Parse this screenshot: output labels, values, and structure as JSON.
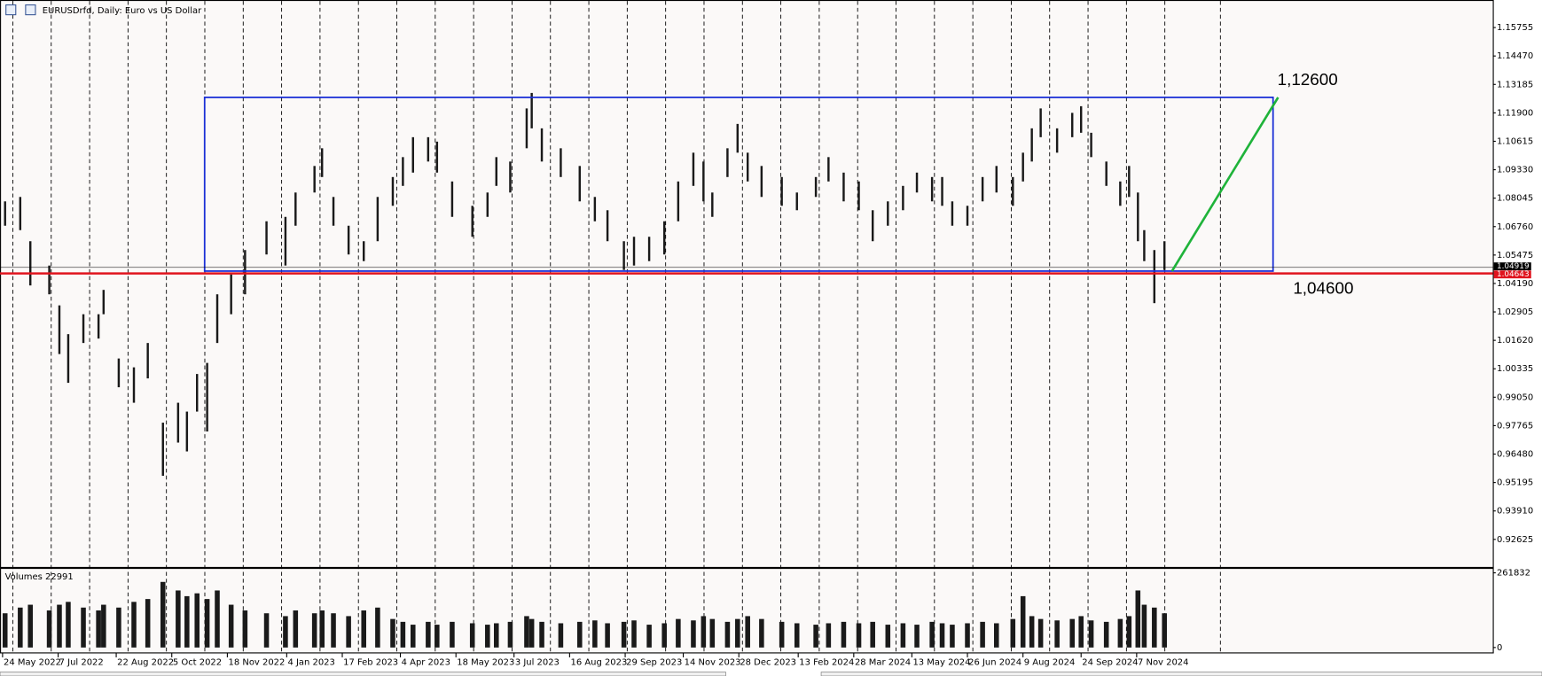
{
  "chart_data": {
    "type": "range-bars",
    "title": "EURUSDrfd, Daily:  Euro vs US Dollar",
    "color": "#1a1a1a",
    "x": [
      "2022-05-26",
      "2022-06-07",
      "2022-06-15",
      "2022-06-30",
      "2022-07-08",
      "2022-07-15",
      "2022-07-27",
      "2022-08-08",
      "2022-08-12",
      "2022-08-24",
      "2022-09-05",
      "2022-09-16",
      "2022-09-28",
      "2022-10-10",
      "2022-10-17",
      "2022-10-25",
      "2022-11-02",
      "2022-11-10",
      "2022-11-21",
      "2022-12-02",
      "2022-12-19",
      "2023-01-03",
      "2023-01-11",
      "2023-01-26",
      "2023-02-01",
      "2023-02-10",
      "2023-02-22",
      "2023-03-06",
      "2023-03-17",
      "2023-03-29",
      "2023-04-06",
      "2023-04-14",
      "2023-04-26",
      "2023-05-03",
      "2023-05-15",
      "2023-05-31",
      "2023-06-12",
      "2023-06-19",
      "2023-06-30",
      "2023-07-13",
      "2023-07-17",
      "2023-07-25",
      "2023-08-09",
      "2023-08-24",
      "2023-09-05",
      "2023-09-15",
      "2023-09-28",
      "2023-10-06",
      "2023-10-18",
      "2023-10-30",
      "2023-11-10",
      "2023-11-22",
      "2023-11-30",
      "2023-12-07",
      "2023-12-19",
      "2023-12-27",
      "2024-01-04",
      "2024-01-15",
      "2024-01-31",
      "2024-02-12",
      "2024-02-27",
      "2024-03-08",
      "2024-03-20",
      "2024-04-01",
      "2024-04-12",
      "2024-04-24",
      "2024-05-06",
      "2024-05-17",
      "2024-05-29",
      "2024-06-06",
      "2024-06-14",
      "2024-06-26",
      "2024-07-08",
      "2024-07-19",
      "2024-08-01",
      "2024-08-09",
      "2024-08-16",
      "2024-08-23",
      "2024-09-05",
      "2024-09-17",
      "2024-09-24",
      "2024-10-02",
      "2024-10-14",
      "2024-10-25",
      "2024-11-01",
      "2024-11-08",
      "2024-11-13",
      "2024-11-21",
      "2024-11-29"
    ],
    "high": [
      1.079,
      1.081,
      1.061,
      1.05,
      1.032,
      1.019,
      1.028,
      1.028,
      1.039,
      1.008,
      1.004,
      1.015,
      0.979,
      0.988,
      0.984,
      1.001,
      1.006,
      1.037,
      1.046,
      1.057,
      1.07,
      1.072,
      1.083,
      1.095,
      1.103,
      1.081,
      1.068,
      1.061,
      1.081,
      1.09,
      1.099,
      1.108,
      1.108,
      1.106,
      1.088,
      1.077,
      1.083,
      1.099,
      1.097,
      1.121,
      1.128,
      1.112,
      1.103,
      1.095,
      1.081,
      1.075,
      1.061,
      1.063,
      1.063,
      1.07,
      1.088,
      1.101,
      1.097,
      1.083,
      1.103,
      1.114,
      1.101,
      1.095,
      1.09,
      1.083,
      1.09,
      1.099,
      1.092,
      1.088,
      1.075,
      1.079,
      1.086,
      1.092,
      1.09,
      1.09,
      1.079,
      1.077,
      1.09,
      1.095,
      1.09,
      1.101,
      1.112,
      1.121,
      1.112,
      1.119,
      1.122,
      1.11,
      1.097,
      1.088,
      1.095,
      1.083,
      1.066,
      1.057,
      1.061
    ],
    "low": [
      1.068,
      1.066,
      1.041,
      1.037,
      1.01,
      0.997,
      1.015,
      1.017,
      1.028,
      0.995,
      0.988,
      0.999,
      0.955,
      0.97,
      0.966,
      0.984,
      0.975,
      1.015,
      1.028,
      1.037,
      1.055,
      1.05,
      1.068,
      1.083,
      1.09,
      1.068,
      1.055,
      1.052,
      1.061,
      1.077,
      1.086,
      1.092,
      1.097,
      1.092,
      1.072,
      1.063,
      1.072,
      1.086,
      1.083,
      1.103,
      1.112,
      1.097,
      1.09,
      1.079,
      1.07,
      1.061,
      1.048,
      1.05,
      1.052,
      1.055,
      1.07,
      1.086,
      1.079,
      1.072,
      1.09,
      1.101,
      1.088,
      1.081,
      1.077,
      1.075,
      1.081,
      1.088,
      1.079,
      1.075,
      1.061,
      1.068,
      1.075,
      1.083,
      1.079,
      1.077,
      1.068,
      1.068,
      1.079,
      1.083,
      1.077,
      1.088,
      1.097,
      1.108,
      1.101,
      1.108,
      1.11,
      1.099,
      1.086,
      1.077,
      1.081,
      1.061,
      1.052,
      1.033,
      1.048
    ],
    "xlim": [
      "2022-05-22",
      "2025-08-16"
    ],
    "xticks": [
      {
        "value": "2022-05-24",
        "label": "24 May 2022"
      },
      {
        "value": "2022-07-07",
        "label": "7 Jul 2022"
      },
      {
        "value": "2022-08-22",
        "label": "22 Aug 2022"
      },
      {
        "value": "2022-10-05",
        "label": "5 Oct 2022"
      },
      {
        "value": "2022-11-18",
        "label": "18 Nov 2022"
      },
      {
        "value": "2023-01-04",
        "label": "4 Jan 2023"
      },
      {
        "value": "2023-02-17",
        "label": "17 Feb 2023"
      },
      {
        "value": "2023-04-04",
        "label": "4 Apr 2023"
      },
      {
        "value": "2023-05-18",
        "label": "18 May 2023"
      },
      {
        "value": "2023-07-03",
        "label": "3 Jul 2023"
      },
      {
        "value": "2023-08-16",
        "label": "16 Aug 2023"
      },
      {
        "value": "2023-09-29",
        "label": "29 Sep 2023"
      },
      {
        "value": "2023-11-14",
        "label": "14 Nov 2023"
      },
      {
        "value": "2023-12-28",
        "label": "28 Dec 2023"
      },
      {
        "value": "2024-02-13",
        "label": "13 Feb 2024"
      },
      {
        "value": "2024-03-28",
        "label": "28 Mar 2024"
      },
      {
        "value": "2024-05-13",
        "label": "13 May 2024"
      },
      {
        "value": "2024-06-26",
        "label": "26 Jun 2024"
      },
      {
        "value": "2024-08-09",
        "label": "9 Aug 2024"
      },
      {
        "value": "2024-09-24",
        "label": "24 Sep 2024"
      },
      {
        "value": "2024-11-07",
        "label": "7 Nov 2024"
      }
    ],
    "ylim": [
      0.9138,
      1.17
    ],
    "yticks": [
      1.15755,
      {
        "value": 1.1447,
        "label": "1.14470"
      },
      1.13185,
      {
        "value": 1.119,
        "label": "1.11900"
      },
      1.10615,
      {
        "value": 1.0933,
        "label": "1.09330"
      },
      1.08045,
      {
        "value": 1.0676,
        "label": "1.06760"
      },
      1.05475,
      {
        "value": 1.0419,
        "label": "1.04190"
      },
      1.02905,
      {
        "value": 1.0162,
        "label": "1.01620"
      },
      1.00335,
      {
        "value": 0.9905,
        "label": "0.99050"
      },
      0.97765,
      {
        "value": 0.9648,
        "label": "0.96480"
      },
      0.95195,
      {
        "value": 0.9391,
        "label": "0.93910"
      },
      0.92625
    ],
    "bid_line": {
      "value": 1.04919,
      "color": "#000000"
    },
    "level_line": {
      "value": 1.04643,
      "color": "#e0141e"
    },
    "rectangle": {
      "from": "2022-10-31",
      "to": "2025-02-23",
      "top": 1.126,
      "bottom": 1.0475,
      "color": "#1a2fd6"
    },
    "trend_line": {
      "x": [
        "2024-12-05",
        "2025-02-27"
      ],
      "y": [
        1.0475,
        1.126
      ],
      "color": "#1fb33a"
    },
    "levels": [
      {
        "label": "1,12600",
        "value": 1.126
      },
      {
        "label": "1,04600",
        "value": 1.046
      }
    ],
    "volumes": {
      "title": "Volumes 22991",
      "color": "#1a1a1a",
      "values": [
        120000,
        140000,
        150000,
        130000,
        150000,
        160000,
        140000,
        130000,
        150000,
        140000,
        160000,
        170000,
        230000,
        200000,
        180000,
        190000,
        170000,
        200000,
        150000,
        130000,
        120000,
        110000,
        130000,
        120000,
        130000,
        120000,
        110000,
        130000,
        140000,
        100000,
        90000,
        80000,
        90000,
        80000,
        90000,
        85000,
        80000,
        85000,
        90000,
        110000,
        100000,
        90000,
        85000,
        90000,
        95000,
        85000,
        90000,
        95000,
        80000,
        85000,
        100000,
        95000,
        110000,
        100000,
        90000,
        100000,
        110000,
        100000,
        90000,
        85000,
        80000,
        85000,
        90000,
        85000,
        90000,
        80000,
        85000,
        80000,
        90000,
        85000,
        80000,
        85000,
        90000,
        85000,
        100000,
        180000,
        110000,
        100000,
        95000,
        100000,
        110000,
        95000,
        90000,
        100000,
        110000,
        200000,
        150000,
        140000,
        120000
      ],
      "ylim": [
        0,
        261832
      ],
      "yticks": [
        261832,
        0
      ]
    }
  }
}
